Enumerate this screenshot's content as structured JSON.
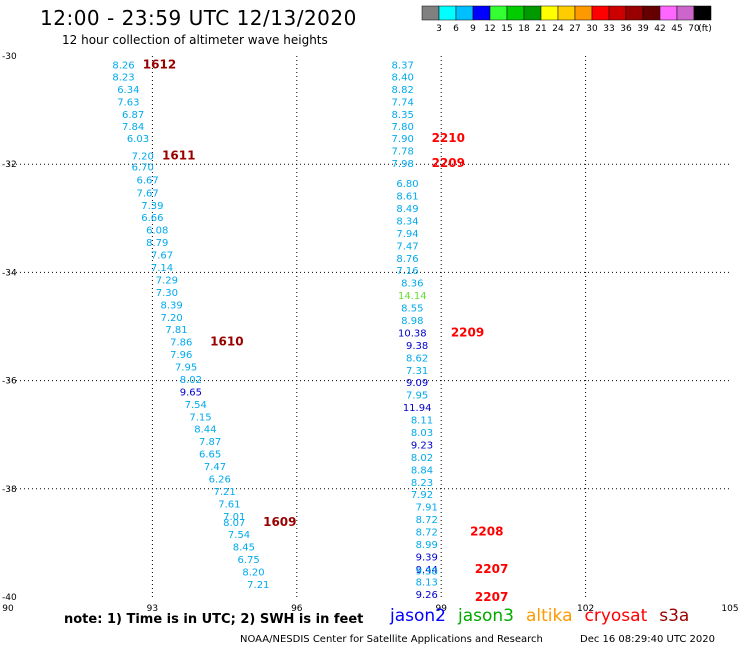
{
  "header": {
    "title": "12:00 - 23:59 UTC 12/13/2020",
    "subtitle": "12 hour collection of altimeter wave heights"
  },
  "colorbar": {
    "labels": [
      "3",
      "6",
      "9",
      "12",
      "15",
      "18",
      "21",
      "24",
      "27",
      "30",
      "33",
      "36",
      "39",
      "42",
      "45",
      "70"
    ],
    "unit": "(ft)",
    "colors": [
      "#808080",
      "#00ffff",
      "#00bfff",
      "#0000ff",
      "#33ff33",
      "#00cc00",
      "#009900",
      "#ffff00",
      "#ffcc00",
      "#ff9900",
      "#ff0000",
      "#cc0000",
      "#990000",
      "#660000",
      "#ff66ff",
      "#cc66cc",
      "#000000"
    ]
  },
  "notes": {
    "text": "note:  1) Time is in UTC;  2) SWH is in feet"
  },
  "missions": [
    {
      "name": "jason2",
      "color": "#0000ff"
    },
    {
      "name": "jason3",
      "color": "#00aa00"
    },
    {
      "name": "altika",
      "color": "#ff9900"
    },
    {
      "name": "cryosat",
      "color": "#ff0000"
    },
    {
      "name": "s3a",
      "color": "#990000"
    }
  ],
  "footer": {
    "credit": "NOAA/NESDIS Center for Satellite Applications and Research",
    "timestamp": "Dec 16 08:29:40 UTC 2020"
  },
  "chart_data": {
    "type": "scatter",
    "xlim": [
      90,
      105
    ],
    "ylim": [
      -40,
      -30
    ],
    "x_ticks": [
      "90",
      "93",
      "96",
      "99",
      "102",
      "105"
    ],
    "y_ticks": [
      "-30",
      "-32",
      "-34",
      "-36",
      "-38",
      "-40"
    ],
    "grid": true,
    "value_colors": {
      "a": "#00aaee",
      "b": "#0000cc",
      "c": "#66dd33"
    },
    "tracks": [
      {
        "name": "track-west",
        "points": [
          {
            "x": 92.4,
            "y": -30.16,
            "v": "8.26",
            "c": "a"
          },
          {
            "x": 92.4,
            "y": -30.38,
            "v": "8.23",
            "c": "a"
          },
          {
            "x": 92.5,
            "y": -30.61,
            "v": "6.34",
            "c": "a"
          },
          {
            "x": 92.5,
            "y": -30.84,
            "v": "7.63",
            "c": "a"
          },
          {
            "x": 92.6,
            "y": -31.07,
            "v": "6.87",
            "c": "a"
          },
          {
            "x": 92.6,
            "y": -31.29,
            "v": "7.84",
            "c": "a"
          },
          {
            "x": 92.7,
            "y": -31.52,
            "v": "6.03",
            "c": "a"
          },
          {
            "x": 92.8,
            "y": -31.84,
            "v": "7.20",
            "c": "a"
          },
          {
            "x": 92.8,
            "y": -32.04,
            "v": "6.70",
            "c": "a"
          },
          {
            "x": 92.9,
            "y": -32.28,
            "v": "6.67",
            "c": "a"
          },
          {
            "x": 92.9,
            "y": -32.52,
            "v": "7.67",
            "c": "a"
          },
          {
            "x": 93.0,
            "y": -32.75,
            "v": "7.39",
            "c": "a"
          },
          {
            "x": 93.0,
            "y": -32.98,
            "v": "6.66",
            "c": "a"
          },
          {
            "x": 93.1,
            "y": -33.21,
            "v": "6.08",
            "c": "a"
          },
          {
            "x": 93.1,
            "y": -33.44,
            "v": "8.79",
            "c": "a"
          },
          {
            "x": 93.2,
            "y": -33.67,
            "v": "7.67",
            "c": "a"
          },
          {
            "x": 93.2,
            "y": -33.9,
            "v": "7.14",
            "c": "a"
          },
          {
            "x": 93.3,
            "y": -34.13,
            "v": "7.29",
            "c": "a"
          },
          {
            "x": 93.3,
            "y": -34.36,
            "v": "7.30",
            "c": "a"
          },
          {
            "x": 93.4,
            "y": -34.59,
            "v": "8.39",
            "c": "a"
          },
          {
            "x": 93.4,
            "y": -34.82,
            "v": "7.20",
            "c": "a"
          },
          {
            "x": 93.5,
            "y": -35.05,
            "v": "7.81",
            "c": "a"
          },
          {
            "x": 93.6,
            "y": -35.28,
            "v": "7.86",
            "c": "a"
          },
          {
            "x": 93.6,
            "y": -35.51,
            "v": "7.96",
            "c": "a"
          },
          {
            "x": 93.7,
            "y": -35.74,
            "v": "7.95",
            "c": "a"
          },
          {
            "x": 93.8,
            "y": -35.97,
            "v": "8.02",
            "c": "a"
          },
          {
            "x": 93.8,
            "y": -36.2,
            "v": "9.65",
            "c": "b"
          },
          {
            "x": 93.9,
            "y": -36.43,
            "v": "7.54",
            "c": "a"
          },
          {
            "x": 94.0,
            "y": -36.66,
            "v": "7.15",
            "c": "a"
          },
          {
            "x": 94.1,
            "y": -36.89,
            "v": "8.44",
            "c": "a"
          },
          {
            "x": 94.2,
            "y": -37.12,
            "v": "7.87",
            "c": "a"
          },
          {
            "x": 94.2,
            "y": -37.35,
            "v": "6.65",
            "c": "a"
          },
          {
            "x": 94.3,
            "y": -37.58,
            "v": "7.47",
            "c": "a"
          },
          {
            "x": 94.4,
            "y": -37.81,
            "v": "6.26",
            "c": "a"
          },
          {
            "x": 94.5,
            "y": -38.04,
            "v": "7.21",
            "c": "a"
          },
          {
            "x": 94.6,
            "y": -38.27,
            "v": "7.61",
            "c": "a"
          },
          {
            "x": 94.7,
            "y": -38.5,
            "v": "7.01",
            "c": "a"
          },
          {
            "x": 94.7,
            "y": -38.61,
            "v": "8.07",
            "c": "a"
          },
          {
            "x": 94.8,
            "y": -38.84,
            "v": "7.54",
            "c": "a"
          },
          {
            "x": 94.9,
            "y": -39.07,
            "v": "8.45",
            "c": "a"
          },
          {
            "x": 95.0,
            "y": -39.3,
            "v": "6.75",
            "c": "a"
          },
          {
            "x": 95.1,
            "y": -39.53,
            "v": "8.20",
            "c": "a"
          },
          {
            "x": 95.2,
            "y": -39.76,
            "v": "7.21",
            "c": "a"
          }
        ]
      },
      {
        "name": "track-east",
        "points": [
          {
            "x": 98.2,
            "y": -30.16,
            "v": "8.37",
            "c": "a"
          },
          {
            "x": 98.2,
            "y": -30.38,
            "v": "8.40",
            "c": "a"
          },
          {
            "x": 98.2,
            "y": -30.61,
            "v": "8.82",
            "c": "a"
          },
          {
            "x": 98.2,
            "y": -30.84,
            "v": "7.74",
            "c": "a"
          },
          {
            "x": 98.2,
            "y": -31.07,
            "v": "8.35",
            "c": "a"
          },
          {
            "x": 98.2,
            "y": -31.29,
            "v": "7.80",
            "c": "a"
          },
          {
            "x": 98.2,
            "y": -31.52,
            "v": "7.90",
            "c": "a"
          },
          {
            "x": 98.2,
            "y": -31.75,
            "v": "7.78",
            "c": "a"
          },
          {
            "x": 98.2,
            "y": -31.98,
            "v": "7.98",
            "c": "a"
          },
          {
            "x": 98.3,
            "y": -32.35,
            "v": "6.80",
            "c": "a"
          },
          {
            "x": 98.3,
            "y": -32.58,
            "v": "8.61",
            "c": "a"
          },
          {
            "x": 98.3,
            "y": -32.81,
            "v": "8.49",
            "c": "a"
          },
          {
            "x": 98.3,
            "y": -33.04,
            "v": "8.34",
            "c": "a"
          },
          {
            "x": 98.3,
            "y": -33.27,
            "v": "7.94",
            "c": "a"
          },
          {
            "x": 98.3,
            "y": -33.5,
            "v": "7.47",
            "c": "a"
          },
          {
            "x": 98.3,
            "y": -33.73,
            "v": "8.76",
            "c": "a"
          },
          {
            "x": 98.3,
            "y": -33.96,
            "v": "7.16",
            "c": "a"
          },
          {
            "x": 98.4,
            "y": -34.19,
            "v": "8.36",
            "c": "a"
          },
          {
            "x": 98.4,
            "y": -34.42,
            "v": "14.14",
            "c": "c"
          },
          {
            "x": 98.4,
            "y": -34.65,
            "v": "8.55",
            "c": "a"
          },
          {
            "x": 98.4,
            "y": -34.88,
            "v": "8.98",
            "c": "a"
          },
          {
            "x": 98.4,
            "y": -35.11,
            "v": "10.38",
            "c": "b"
          },
          {
            "x": 98.5,
            "y": -35.34,
            "v": "9.38",
            "c": "b"
          },
          {
            "x": 98.5,
            "y": -35.57,
            "v": "8.62",
            "c": "a"
          },
          {
            "x": 98.5,
            "y": -35.8,
            "v": "7.31",
            "c": "a"
          },
          {
            "x": 98.5,
            "y": -36.03,
            "v": "9.09",
            "c": "b"
          },
          {
            "x": 98.5,
            "y": -36.26,
            "v": "7.95",
            "c": "a"
          },
          {
            "x": 98.5,
            "y": -36.49,
            "v": "11.94",
            "c": "b"
          },
          {
            "x": 98.6,
            "y": -36.72,
            "v": "8.11",
            "c": "a"
          },
          {
            "x": 98.6,
            "y": -36.95,
            "v": "8.03",
            "c": "a"
          },
          {
            "x": 98.6,
            "y": -37.18,
            "v": "9.23",
            "c": "b"
          },
          {
            "x": 98.6,
            "y": -37.41,
            "v": "8.02",
            "c": "a"
          },
          {
            "x": 98.6,
            "y": -37.64,
            "v": "8.84",
            "c": "a"
          },
          {
            "x": 98.6,
            "y": -37.87,
            "v": "8.23",
            "c": "a"
          },
          {
            "x": 98.6,
            "y": -38.1,
            "v": "7.92",
            "c": "a"
          },
          {
            "x": 98.7,
            "y": -38.33,
            "v": "7.91",
            "c": "a"
          },
          {
            "x": 98.7,
            "y": -38.56,
            "v": "8.72",
            "c": "a"
          },
          {
            "x": 98.7,
            "y": -38.79,
            "v": "8.72",
            "c": "a"
          },
          {
            "x": 98.7,
            "y": -39.02,
            "v": "8.99",
            "c": "a"
          },
          {
            "x": 98.7,
            "y": -39.25,
            "v": "9.39",
            "c": "b"
          },
          {
            "x": 98.7,
            "y": -39.48,
            "v": "9.44",
            "c": "b"
          },
          {
            "x": 98.7,
            "y": -39.51,
            "v": "9.38",
            "c": "a"
          },
          {
            "x": 98.7,
            "y": -39.71,
            "v": "8.13",
            "c": "a"
          },
          {
            "x": 98.7,
            "y": -39.94,
            "v": "9.26",
            "c": "b"
          }
        ]
      }
    ],
    "pass_labels": [
      {
        "text": "1612",
        "x": 92.8,
        "y": -30.16,
        "color": "#990000"
      },
      {
        "text": "1611",
        "x": 93.2,
        "y": -31.84,
        "color": "#990000"
      },
      {
        "text": "1610",
        "x": 94.2,
        "y": -35.28,
        "color": "#990000"
      },
      {
        "text": "1609",
        "x": 95.3,
        "y": -38.61,
        "color": "#990000"
      },
      {
        "text": "2210",
        "x": 98.8,
        "y": -31.52,
        "color": "#ff0000"
      },
      {
        "text": "2209",
        "x": 98.8,
        "y": -31.98,
        "color": "#ff0000"
      },
      {
        "text": "2209",
        "x": 99.2,
        "y": -35.11,
        "color": "#ff0000"
      },
      {
        "text": "2208",
        "x": 99.6,
        "y": -38.79,
        "color": "#ff0000"
      },
      {
        "text": "2207",
        "x": 99.7,
        "y": -39.48,
        "color": "#ff0000"
      },
      {
        "text": "2207",
        "x": 99.7,
        "y": -40.0,
        "color": "#ff0000"
      }
    ]
  }
}
